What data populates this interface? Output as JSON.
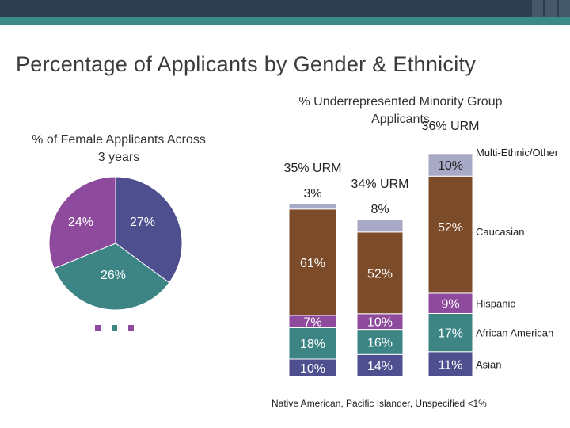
{
  "title": "Percentage of Applicants by Gender & Ethnicity",
  "footnote": "Native American, Pacific Islander, Unspecified <1%",
  "chart_data": [
    {
      "type": "pie",
      "title": "% of Female Applicants Across 3 years",
      "slices": [
        {
          "label": "27%",
          "value": 27,
          "color": "#4e4f8f"
        },
        {
          "label": "26%",
          "value": 26,
          "color": "#3d8585"
        },
        {
          "label": "24%",
          "value": 24,
          "color": "#8e4a9d"
        }
      ]
    },
    {
      "type": "bar",
      "stacked": true,
      "title": "% Underrepresented Minority Group Applicants",
      "bars": [
        {
          "urm_label": "35% URM",
          "segments": [
            {
              "category": "Asian",
              "value": 10,
              "label": "10%"
            },
            {
              "category": "African American",
              "value": 18,
              "label": "18%"
            },
            {
              "category": "Hispanic",
              "value": 7,
              "label": "7%"
            },
            {
              "category": "Caucasian",
              "value": 61,
              "label": "61%"
            },
            {
              "category": "Multi-Ethnic/Other",
              "value": 3,
              "label": "3%"
            }
          ]
        },
        {
          "urm_label": "34% URM",
          "segments": [
            {
              "category": "Asian",
              "value": 14,
              "label": "14%"
            },
            {
              "category": "African American",
              "value": 16,
              "label": "16%"
            },
            {
              "category": "Hispanic",
              "value": 10,
              "label": "10%"
            },
            {
              "category": "Caucasian",
              "value": 52,
              "label": "52%"
            },
            {
              "category": "Multi-Ethnic/Other",
              "value": 8,
              "label": "8%"
            }
          ]
        },
        {
          "urm_label": "36% URM",
          "segments": [
            {
              "category": "Asian",
              "value": 11,
              "label": "11%"
            },
            {
              "category": "African American",
              "value": 17,
              "label": "17%"
            },
            {
              "category": "Hispanic",
              "value": 9,
              "label": "9%"
            },
            {
              "category": "Caucasian",
              "value": 52,
              "label": "52%"
            },
            {
              "category": "Multi-Ethnic/Other",
              "value": 10,
              "label": "10%"
            }
          ]
        }
      ],
      "legend": [
        {
          "category": "Multi-Ethnic/Other",
          "label": "Multi-Ethnic/Other",
          "color": "#a7a9c6"
        },
        {
          "category": "Caucasian",
          "label": "Caucasian",
          "color": "#7b4b2a"
        },
        {
          "category": "Hispanic",
          "label": "Hispanic",
          "color": "#8e4a9d"
        },
        {
          "category": "African American",
          "label": "African American",
          "color": "#3d8585"
        },
        {
          "category": "Asian",
          "label": "Asian",
          "color": "#4e4f8f"
        }
      ]
    }
  ]
}
